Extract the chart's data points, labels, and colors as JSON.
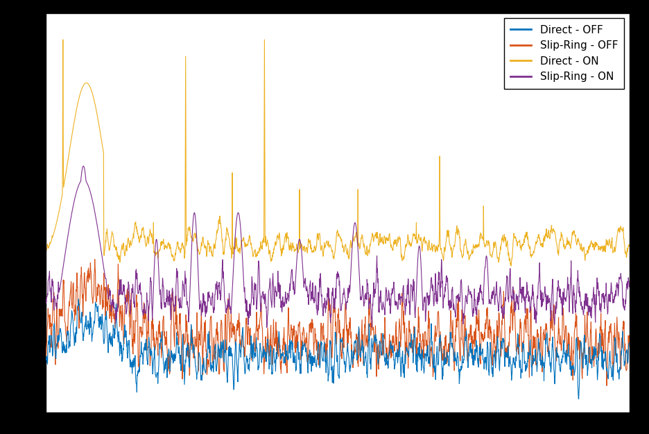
{
  "title": "",
  "xlabel": "",
  "ylabel": "",
  "legend_labels": [
    "Direct - OFF",
    "Slip-Ring - OFF",
    "Direct - ON",
    "Slip-Ring - ON"
  ],
  "line_colors": [
    "#0072BD",
    "#D95319",
    "#EDB120",
    "#7E2F8E"
  ],
  "background_color": "#FFFFFF",
  "figure_background": "#000000",
  "grid_color": "#C0C0C0",
  "figsize": [
    9.36,
    6.25
  ],
  "dpi": 100,
  "n_points": 2000,
  "seed": 12345
}
